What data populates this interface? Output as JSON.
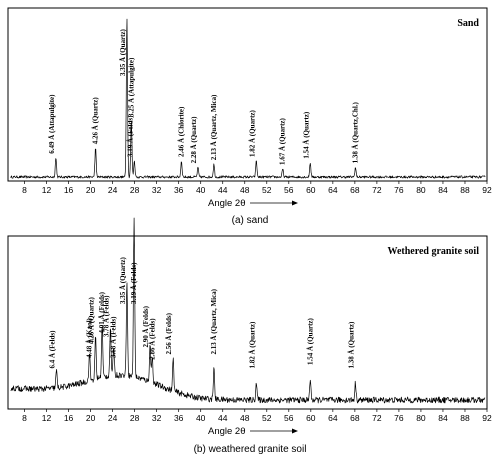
{
  "chart_data": [
    {
      "type": "line",
      "title": "Sand",
      "xlabel": "Angle 2θ",
      "caption": "(a) sand",
      "xlim": [
        5,
        92
      ],
      "xticks": [
        8,
        12,
        16,
        20,
        24,
        28,
        32,
        36,
        40,
        44,
        48,
        52,
        56,
        60,
        64,
        68,
        72,
        76,
        80,
        84,
        88,
        92
      ],
      "peaks": [
        {
          "x": 13.7,
          "y": 0.12,
          "label": "6.49 Å (Attapulgite)"
        },
        {
          "x": 20.9,
          "y": 0.18,
          "label": "4.26 Å (Quartz)"
        },
        {
          "x": 26.6,
          "y": 1.0,
          "label": "3.35 Å (Quartz)"
        },
        {
          "x": 27.4,
          "y": 0.35,
          "label": "3.25 Å (Attapulgite)"
        },
        {
          "x": 27.95,
          "y": 0.1,
          "label": "3.19 Å (Felds)"
        },
        {
          "x": 36.5,
          "y": 0.1,
          "label": "2.46 Å (Chlorite)"
        },
        {
          "x": 39.5,
          "y": 0.06,
          "label": "2.28 Å (Quartz)"
        },
        {
          "x": 42.4,
          "y": 0.08,
          "label": "2.13 Å (Quartz, Mica)"
        },
        {
          "x": 50.1,
          "y": 0.1,
          "label": "1.82 Å (Quartz)"
        },
        {
          "x": 54.9,
          "y": 0.05,
          "label": "1.67 Å (Quartz)"
        },
        {
          "x": 59.9,
          "y": 0.09,
          "label": "1.54 Å (Quartz)"
        },
        {
          "x": 68.1,
          "y": 0.06,
          "label": "1.38 Å (Quartz,Chl.)"
        }
      ]
    },
    {
      "type": "line",
      "title": "Wethered granite soil",
      "xlabel": "Angle 2θ",
      "caption": "(b) weathered granite soil",
      "xlim": [
        5,
        92
      ],
      "xticks": [
        8,
        12,
        16,
        20,
        24,
        28,
        32,
        36,
        40,
        44,
        48,
        52,
        56,
        60,
        64,
        68,
        72,
        76,
        80,
        84,
        88,
        92
      ],
      "peaks": [
        {
          "x": 13.8,
          "y": 0.1,
          "label": "6.4 Å (Felds)"
        },
        {
          "x": 19.8,
          "y": 0.16,
          "label": "4.48 Å (Kaol)"
        },
        {
          "x": 20.9,
          "y": 0.24,
          "label": "4.26 Å (Quartz)"
        },
        {
          "x": 22.1,
          "y": 0.3,
          "label": "4.01 Å (Felds)"
        },
        {
          "x": 23.6,
          "y": 0.28,
          "label": "3.78 Å (Felds)"
        },
        {
          "x": 24.2,
          "y": 0.16,
          "label": "3.68 Å (Felds)"
        },
        {
          "x": 26.6,
          "y": 0.55,
          "label": "3.35 Å (Quartz)"
        },
        {
          "x": 27.9,
          "y": 0.9,
          "label": "3.19 Å (Felds)"
        },
        {
          "x": 30.8,
          "y": 0.22,
          "label": "2.90 Å (Felds)"
        },
        {
          "x": 31.2,
          "y": 0.15,
          "label": "2.86 Å (Felds)"
        },
        {
          "x": 35.0,
          "y": 0.18,
          "label": "2.56 Å (Felds)"
        },
        {
          "x": 42.4,
          "y": 0.18,
          "label": "2.13 Å (Quartz, Mica)"
        },
        {
          "x": 50.1,
          "y": 0.1,
          "label": "1.82 Å (Quartz)"
        },
        {
          "x": 59.9,
          "y": 0.12,
          "label": "1.54 Å (Quartz)"
        },
        {
          "x": 68.1,
          "y": 0.1,
          "label": "1.38 Å (Quartz)"
        }
      ]
    }
  ]
}
